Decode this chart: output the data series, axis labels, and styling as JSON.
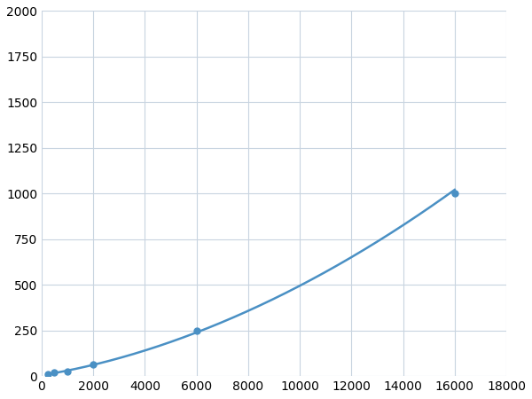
{
  "x": [
    250,
    500,
    1000,
    2000,
    6000,
    16000
  ],
  "y": [
    10,
    20,
    25,
    65,
    250,
    1000
  ],
  "line_color": "#4a90c4",
  "marker_color": "#4a90c4",
  "marker_size": 5,
  "line_width": 1.8,
  "xlim": [
    0,
    18000
  ],
  "ylim": [
    0,
    2000
  ],
  "xticks": [
    0,
    2000,
    4000,
    6000,
    8000,
    10000,
    12000,
    14000,
    16000,
    18000
  ],
  "yticks": [
    0,
    250,
    500,
    750,
    1000,
    1250,
    1500,
    1750,
    2000
  ],
  "grid_color": "#c8d4e0",
  "background_color": "#ffffff",
  "tick_fontsize": 10,
  "figsize": [
    6.0,
    4.5
  ],
  "dpi": 100
}
